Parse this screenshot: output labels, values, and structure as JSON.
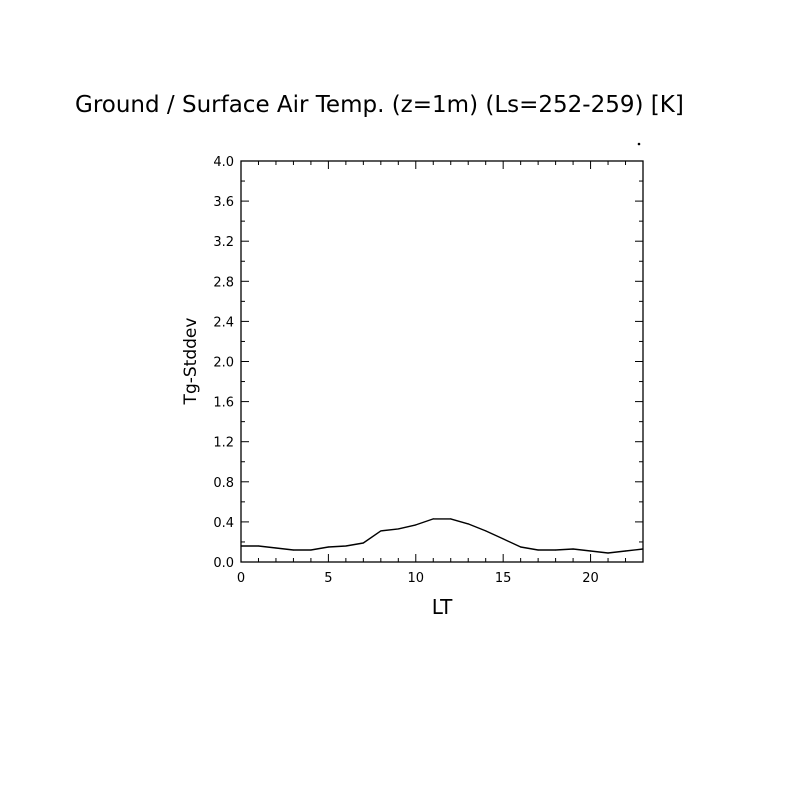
{
  "chart_data": {
    "type": "line",
    "title": "Ground / Surface Air Temp. (z=1m) (Ls=252-259) [K]",
    "xlabel": "LT",
    "ylabel": "Tg-Stddev",
    "xlim": [
      0,
      23
    ],
    "ylim": [
      0,
      4.0
    ],
    "x_ticks": [
      0,
      5,
      10,
      15,
      20
    ],
    "x_tick_labels": [
      "0",
      "5",
      "10",
      "15",
      "20"
    ],
    "y_ticks": [
      0,
      0.4,
      0.8,
      1.2,
      1.6,
      2.0,
      2.4,
      2.8,
      3.2,
      3.6,
      4.0
    ],
    "y_tick_labels": [
      "0.0",
      "0.4",
      "0.8",
      "1.2",
      "1.6",
      "2.0",
      "2.4",
      "2.8",
      "3.2",
      "3.6",
      "4.0"
    ],
    "grid": false,
    "series": [
      {
        "x": [
          0,
          1,
          2,
          3,
          4,
          5,
          6,
          7,
          8,
          9,
          10,
          11,
          12,
          13,
          14,
          15,
          16,
          17,
          18,
          19,
          20,
          21,
          22,
          23
        ],
        "values": [
          0.16,
          0.16,
          0.14,
          0.12,
          0.12,
          0.15,
          0.16,
          0.19,
          0.31,
          0.33,
          0.37,
          0.43,
          0.43,
          0.38,
          0.31,
          0.23,
          0.15,
          0.12,
          0.12,
          0.13,
          0.11,
          0.09,
          0.11,
          0.13
        ]
      }
    ]
  }
}
